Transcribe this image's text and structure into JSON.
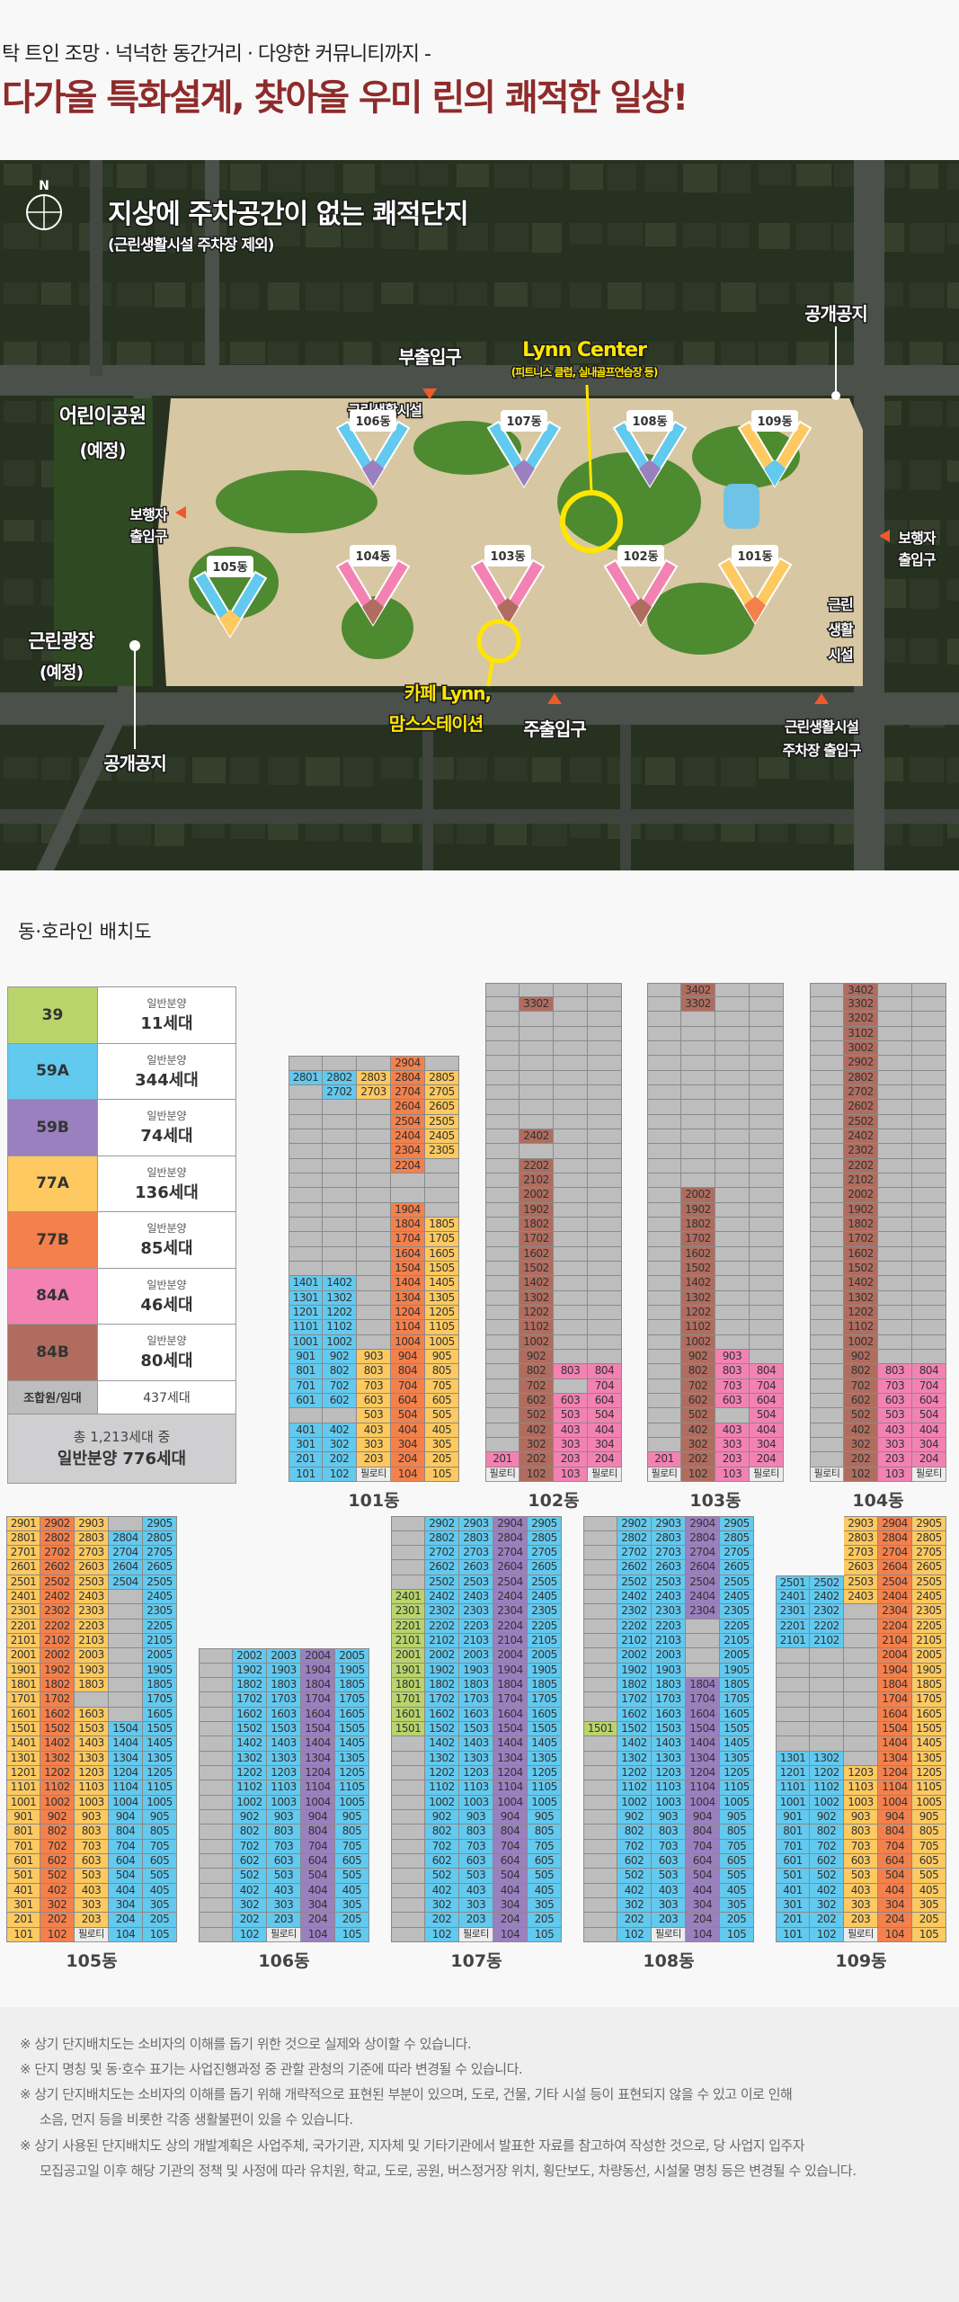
{
  "header": {
    "subtitle": "탁 트인 조망 · 넉넉한 동간거리 · 다양한 커뮤니티까지 -",
    "title": "다가올 특화설계, 찾아올 우미 린의 쾌적한 일상!",
    "title_color": "#8e2b2b"
  },
  "map": {
    "compass": "N",
    "headline": "지상에 주차공간이 없는 쾌적단지",
    "headline_note": "(근린생활시설 주차장 제외)",
    "labels": {
      "open_space_top": "공개공지",
      "lynn_center": "Lynn Center",
      "lynn_center_sub": "(피트니스 클럽, 실내골프연습장 등)",
      "sub_entrance": "부출입구",
      "neighborhood_facility_top": "근린생활시설",
      "kids_park": "어린이공원",
      "kids_park_note": "(예정)",
      "ped_entrance_left_1": "보행자",
      "ped_entrance_left_2": "출입구",
      "ped_entrance_right_1": "보행자",
      "ped_entrance_right_2": "출입구",
      "facility_right_1": "근린",
      "facility_right_2": "생활",
      "facility_right_3": "시설",
      "plaza": "근린광장",
      "plaza_note": "(예정)",
      "cafe_1": "카페 Lynn,",
      "cafe_2": "맘스스테이션",
      "main_entrance": "주출입구",
      "facility_parking_1": "근린생활시설",
      "facility_parking_2": "주차장 출입구",
      "open_space_bottom": "공개공지"
    },
    "buildings": [
      "101동",
      "102동",
      "103동",
      "104동",
      "105동",
      "106동",
      "107동",
      "108동",
      "109동"
    ],
    "highlight_color": "#ffe600"
  },
  "section_title": "동·호라인 배치도",
  "legend": {
    "items": [
      {
        "code": "l",
        "type": "39",
        "label": "일반분양",
        "count": "11세대"
      },
      {
        "code": "a",
        "type": "59A",
        "label": "일반분양",
        "count": "344세대"
      },
      {
        "code": "b",
        "type": "59B",
        "label": "일반분양",
        "count": "74세대"
      },
      {
        "code": "y",
        "type": "77A",
        "label": "일반분양",
        "count": "136세대"
      },
      {
        "code": "o",
        "type": "77B",
        "label": "일반분양",
        "count": "85세대"
      },
      {
        "code": "p",
        "type": "84A",
        "label": "일반분양",
        "count": "46세대"
      },
      {
        "code": "r",
        "type": "84B",
        "label": "일반분양",
        "count": "80세대"
      }
    ],
    "member": {
      "type": "조합원/임대",
      "count": "437세대"
    },
    "total_line1": "총 1,213세대 중",
    "total_line2": "일반분양 776세대"
  },
  "type_colors": {
    "l": "#b8d46b",
    "a": "#62c9ef",
    "b": "#9a80bf",
    "y": "#fdc960",
    "o": "#f4804c",
    "p": "#f382b3",
    "r": "#b06d5f",
    "g": "#bdbdbd",
    "P": "#ececec"
  },
  "unit_grid": {
    "piloti_label": "필로티",
    "buildings": [
      {
        "id": "101",
        "label": "101동",
        "lines": 5,
        "rows": [
          "gggog",
          "aayoy",
          "gayoy",
          "gggoy",
          "gggoy",
          "gggoy",
          "gggoy",
          "gggog",
          "ggggg",
          "ggggg",
          "gggog",
          "gggoy",
          "gggoy",
          "gggoy",
          "gggoy",
          "aagoy",
          "aagoy",
          "aagoy",
          "aagoy",
          "aagoy",
          "aayoy",
          "aayoy",
          "aayoy",
          "aayoy",
          "ggyoy",
          "aayoy",
          "aayoy",
          "aayoy",
          "aaPoy"
        ]
      },
      {
        "id": "102",
        "label": "102동",
        "lines": 4,
        "rows": [
          "gggg",
          "grgg",
          "gggg",
          "gggg",
          "gggg",
          "gggg",
          "gggg",
          "gggg",
          "gggg",
          "gggg",
          "grgg",
          "gggg",
          "grgg",
          "grgg",
          "grgg",
          "grgg",
          "grgg",
          "grgg",
          "grgg",
          "grgg",
          "grgg",
          "grgg",
          "grgg",
          "grgg",
          "grgg",
          "grgg",
          "grpp",
          "grgp",
          "grpp",
          "grpp",
          "grpp",
          "grpp",
          "prpp",
          "PrpP"
        ]
      },
      {
        "id": "103",
        "label": "103동",
        "lines": 4,
        "rows": [
          "grgg",
          "grgg",
          "gggg",
          "gggg",
          "gggg",
          "gggg",
          "gggg",
          "gggg",
          "gggg",
          "gggg",
          "gggg",
          "gggg",
          "gggg",
          "gggg",
          "grgg",
          "grgg",
          "grgg",
          "grgg",
          "grgg",
          "grgg",
          "grgg",
          "grgg",
          "grgg",
          "grgg",
          "grgg",
          "grpg",
          "grpp",
          "grpp",
          "grpp",
          "grgp",
          "grpp",
          "grpp",
          "prpp",
          "PrpP"
        ]
      },
      {
        "id": "104",
        "label": "104동",
        "lines": 4,
        "rows": [
          "grgg",
          "grgg",
          "grgg",
          "grgg",
          "grgg",
          "grgg",
          "grgg",
          "grgg",
          "grgg",
          "grgg",
          "grgg",
          "grgg",
          "grgg",
          "grgg",
          "grgg",
          "grgg",
          "grgg",
          "grgg",
          "grgg",
          "grgg",
          "grgg",
          "grgg",
          "grgg",
          "grgg",
          "grgg",
          "grgg",
          "grpp",
          "grpp",
          "grpp",
          "grpp",
          "grpp",
          "grpp",
          "grpp",
          "PrpP"
        ]
      },
      {
        "id": "105",
        "label": "105동",
        "lines": 5,
        "rows": [
          "yoyga",
          "yoyaa",
          "yoyaa",
          "yoyaa",
          "yoyaa",
          "yoyga",
          "yoyga",
          "yoyga",
          "yoyga",
          "yoyga",
          "yoyga",
          "yoyga",
          "yogga",
          "yoyga",
          "yoyaa",
          "yoyaa",
          "yoyaa",
          "yoyaa",
          "yoyaa",
          "yoyaa",
          "yoyaa",
          "yoyaa",
          "yoyaa",
          "yoyaa",
          "yoyaa",
          "yoyaa",
          "yoyaa",
          "yoyaa",
          "yoPaa"
        ]
      },
      {
        "id": "106",
        "label": "106동",
        "lines": 5,
        "rows": [
          "gaaba",
          "gaaba",
          "gaaba",
          "gaaba",
          "gaaba",
          "gaaba",
          "gaaba",
          "gaaba",
          "gaaba",
          "gaaba",
          "gaaba",
          "gaaba",
          "gaaba",
          "gaaba",
          "gaaba",
          "gaaba",
          "gaaba",
          "gaaba",
          "gaaba",
          "gaPba"
        ]
      },
      {
        "id": "107",
        "label": "107동",
        "lines": 5,
        "rows": [
          "gaaba",
          "gaaba",
          "gaaba",
          "gaaba",
          "gaaba",
          "laaba",
          "laaba",
          "laaba",
          "laaba",
          "laaba",
          "laaba",
          "laaba",
          "laaba",
          "laaba",
          "laaba",
          "gaaba",
          "gaaba",
          "gaaba",
          "gaaba",
          "gaaba",
          "gaaba",
          "gaaba",
          "gaaba",
          "gaaba",
          "gaaba",
          "gaaba",
          "gaaba",
          "gaaba",
          "gaPba"
        ]
      },
      {
        "id": "108",
        "label": "108동",
        "lines": 5,
        "rows": [
          "gaaba",
          "gaaba",
          "gaaba",
          "gaaba",
          "gaaba",
          "gaaba",
          "gaaba",
          "gaaga",
          "gaaga",
          "gaaga",
          "gaaga",
          "gaaba",
          "gaaba",
          "gaaba",
          "laaba",
          "gaaba",
          "gaaba",
          "gaaba",
          "gaaba",
          "gaaba",
          "gaaba",
          "gaaba",
          "gaaba",
          "gaaba",
          "gaaba",
          "gaaba",
          "gaaba",
          "gaaba",
          "gaPba"
        ]
      },
      {
        "id": "109",
        "label": "109동",
        "lines": 5,
        "rows": [
          "xxyoy",
          "xxyoy",
          "xxyoy",
          "xxyoy",
          "aayoy",
          "aayoy",
          "aagoy",
          "aagoy",
          "aagoy",
          "gggoy",
          "gggoy",
          "gggoy",
          "gggoy",
          "gggoy",
          "gggoy",
          "gggoy",
          "aagoy",
          "aayoy",
          "aayoy",
          "aayoy",
          "aayoy",
          "aayoy",
          "aayoy",
          "aayoy",
          "aayoy",
          "aayoy",
          "aayoy",
          "aayoy",
          "aaPoy"
        ]
      }
    ]
  },
  "notes": [
    "※ 상기 단지배치도는 소비자의 이해를 돕기 위한 것으로 실제와 상이할 수 있습니다.",
    "※ 단지 명칭 및 동·호수 표기는 사업진행과정 중 관할 관청의 기준에 따라 변경될 수 있습니다.",
    "※ 상기 단지배치도는 소비자의 이해를 돕기 위해 개략적으로 표현된 부분이 있으며, 도로, 건물, 기타 시설 등이 표현되지 않을 수 있고 이로 인해",
    "소음, 먼지 등을 비롯한 각종 생활불편이 있을 수 있습니다.",
    "※ 상기 사용된 단지배치도 상의 개발계획은 사업주체, 국가기관, 지자체 및 기타기관에서 발표한 자료를 참고하여 작성한 것으로, 당 사업지 입주자",
    "모집공고일 이후 해당 기관의 정책 및 사정에 따라 유치원, 학교, 도로, 공원, 버스정거장 위치, 횡단보도, 차량동선, 시설물 명칭 등은 변경될 수 있습니다."
  ]
}
